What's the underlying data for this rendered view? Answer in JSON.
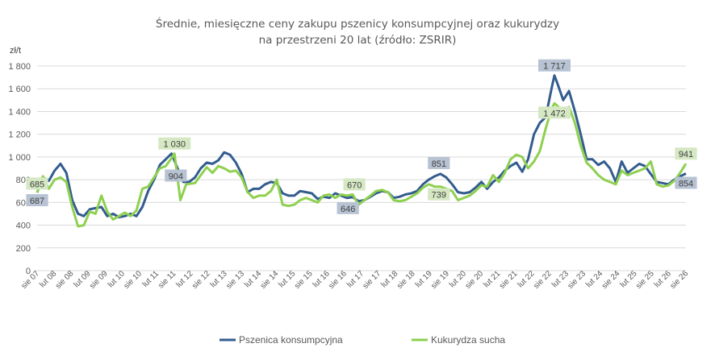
{
  "chart_data": {
    "type": "line",
    "title": "Średnie, miesięczne ceny zakupu pszenicy konsumpcyjnej oraz kukurydzy",
    "subtitle": "na przestrzeni 20 lat (źródło: ZSRIR)",
    "ylabel": "zł/t",
    "xlabel": "",
    "ylim": [
      0,
      1800
    ],
    "yticks": [
      0,
      200,
      400,
      600,
      800,
      1000,
      1200,
      1400,
      1600,
      1800
    ],
    "ytick_labels": [
      "0",
      "200",
      "400",
      "600",
      "800",
      "1 000",
      "1 200",
      "1 400",
      "1 600",
      "1 800"
    ],
    "x_start": "2007-08",
    "x_end": "2026-02",
    "xticks": [
      "sie 07",
      "lut 08",
      "sie 08",
      "lut 09",
      "sie 09",
      "lut 10",
      "sie 10",
      "lut 11",
      "sie 11",
      "lut 12",
      "sie 12",
      "lut 13",
      "sie 13",
      "lut 14",
      "sie 14",
      "lut 15",
      "sie 15",
      "lut 16",
      "sie 16",
      "lut 17",
      "sie 17",
      "lut 18",
      "sie 18",
      "lut 19",
      "sie 19",
      "lut 20",
      "sie 20",
      "lut 21",
      "sie 21",
      "lut 22",
      "sie 22",
      "lut 23",
      "sie 23",
      "lut 24",
      "sie 24",
      "lut 25",
      "sie 25",
      "lut 26",
      "sie 26"
    ],
    "grid": true,
    "legend_position": "bottom",
    "series": [
      {
        "name": "Pszenica konsumpcyjna",
        "color": "#335c8f",
        "points": [
          [
            "2007-08",
            687
          ],
          [
            "2007-10",
            820
          ],
          [
            "2007-12",
            790
          ],
          [
            "2008-02",
            880
          ],
          [
            "2008-04",
            940
          ],
          [
            "2008-06",
            860
          ],
          [
            "2008-08",
            620
          ],
          [
            "2008-10",
            500
          ],
          [
            "2008-12",
            480
          ],
          [
            "2009-02",
            540
          ],
          [
            "2009-04",
            550
          ],
          [
            "2009-06",
            560
          ],
          [
            "2009-08",
            480
          ],
          [
            "2009-10",
            500
          ],
          [
            "2009-12",
            470
          ],
          [
            "2010-02",
            480
          ],
          [
            "2010-04",
            500
          ],
          [
            "2010-06",
            480
          ],
          [
            "2010-08",
            560
          ],
          [
            "2010-10",
            700
          ],
          [
            "2010-12",
            800
          ],
          [
            "2011-02",
            930
          ],
          [
            "2011-04",
            980
          ],
          [
            "2011-06",
            1030
          ],
          [
            "2011-08",
            904
          ],
          [
            "2011-10",
            780
          ],
          [
            "2011-12",
            780
          ],
          [
            "2012-02",
            820
          ],
          [
            "2012-04",
            900
          ],
          [
            "2012-06",
            950
          ],
          [
            "2012-08",
            940
          ],
          [
            "2012-10",
            970
          ],
          [
            "2012-12",
            1040
          ],
          [
            "2013-02",
            1020
          ],
          [
            "2013-04",
            950
          ],
          [
            "2013-06",
            850
          ],
          [
            "2013-08",
            690
          ],
          [
            "2013-10",
            720
          ],
          [
            "2013-12",
            720
          ],
          [
            "2014-02",
            760
          ],
          [
            "2014-04",
            780
          ],
          [
            "2014-06",
            770
          ],
          [
            "2014-08",
            680
          ],
          [
            "2014-10",
            660
          ],
          [
            "2014-12",
            660
          ],
          [
            "2015-02",
            700
          ],
          [
            "2015-04",
            690
          ],
          [
            "2015-06",
            680
          ],
          [
            "2015-08",
            630
          ],
          [
            "2015-10",
            650
          ],
          [
            "2015-12",
            640
          ],
          [
            "2016-02",
            680
          ],
          [
            "2016-04",
            660
          ],
          [
            "2016-06",
            640
          ],
          [
            "2016-08",
            646
          ],
          [
            "2016-10",
            610
          ],
          [
            "2016-12",
            620
          ],
          [
            "2017-02",
            650
          ],
          [
            "2017-04",
            680
          ],
          [
            "2017-06",
            700
          ],
          [
            "2017-08",
            690
          ],
          [
            "2017-10",
            640
          ],
          [
            "2017-12",
            650
          ],
          [
            "2018-02",
            670
          ],
          [
            "2018-04",
            680
          ],
          [
            "2018-06",
            700
          ],
          [
            "2018-08",
            760
          ],
          [
            "2018-10",
            800
          ],
          [
            "2018-12",
            830
          ],
          [
            "2019-02",
            851
          ],
          [
            "2019-04",
            820
          ],
          [
            "2019-06",
            760
          ],
          [
            "2019-08",
            690
          ],
          [
            "2019-10",
            680
          ],
          [
            "2019-12",
            690
          ],
          [
            "2020-02",
            730
          ],
          [
            "2020-04",
            780
          ],
          [
            "2020-06",
            720
          ],
          [
            "2020-08",
            780
          ],
          [
            "2020-10",
            820
          ],
          [
            "2020-12",
            880
          ],
          [
            "2021-02",
            920
          ],
          [
            "2021-04",
            950
          ],
          [
            "2021-06",
            870
          ],
          [
            "2021-08",
            980
          ],
          [
            "2021-10",
            1200
          ],
          [
            "2021-12",
            1300
          ],
          [
            "2022-02",
            1350
          ],
          [
            "2022-04",
            1600
          ],
          [
            "2022-05",
            1717
          ],
          [
            "2022-06",
            1650
          ],
          [
            "2022-08",
            1500
          ],
          [
            "2022-10",
            1580
          ],
          [
            "2022-12",
            1400
          ],
          [
            "2023-02",
            1200
          ],
          [
            "2023-04",
            980
          ],
          [
            "2023-06",
            980
          ],
          [
            "2023-08",
            930
          ],
          [
            "2023-10",
            960
          ],
          [
            "2023-12",
            900
          ],
          [
            "2024-02",
            780
          ],
          [
            "2024-04",
            960
          ],
          [
            "2024-06",
            860
          ],
          [
            "2024-08",
            900
          ],
          [
            "2024-10",
            940
          ],
          [
            "2024-12",
            920
          ],
          [
            "2025-02",
            850
          ],
          [
            "2025-04",
            780
          ],
          [
            "2025-06",
            770
          ],
          [
            "2025-08",
            760
          ],
          [
            "2025-10",
            800
          ],
          [
            "2025-12",
            830
          ],
          [
            "2026-02",
            854
          ]
        ],
        "labels": [
          [
            "2007-08",
            687
          ],
          [
            "2011-08",
            904
          ],
          [
            "2016-08",
            646
          ],
          [
            "2019-02",
            851
          ],
          [
            "2022-05",
            1717
          ],
          [
            "2026-02",
            854
          ]
        ]
      },
      {
        "name": "Kukurydza sucha",
        "color": "#8ed04f",
        "points": [
          [
            "2007-08",
            685
          ],
          [
            "2007-10",
            830
          ],
          [
            "2007-12",
            720
          ],
          [
            "2008-02",
            800
          ],
          [
            "2008-04",
            820
          ],
          [
            "2008-06",
            780
          ],
          [
            "2008-08",
            560
          ],
          [
            "2008-10",
            390
          ],
          [
            "2008-12",
            400
          ],
          [
            "2009-02",
            520
          ],
          [
            "2009-04",
            500
          ],
          [
            "2009-06",
            660
          ],
          [
            "2009-08",
            520
          ],
          [
            "2009-10",
            450
          ],
          [
            "2009-12",
            480
          ],
          [
            "2010-02",
            510
          ],
          [
            "2010-04",
            480
          ],
          [
            "2010-06",
            530
          ],
          [
            "2010-08",
            720
          ],
          [
            "2010-10",
            740
          ],
          [
            "2010-12",
            820
          ],
          [
            "2011-02",
            900
          ],
          [
            "2011-04",
            920
          ],
          [
            "2011-06",
            990
          ],
          [
            "2011-07",
            1030
          ],
          [
            "2011-09",
            620
          ],
          [
            "2011-11",
            760
          ],
          [
            "2012-02",
            770
          ],
          [
            "2012-04",
            840
          ],
          [
            "2012-06",
            910
          ],
          [
            "2012-08",
            860
          ],
          [
            "2012-10",
            920
          ],
          [
            "2012-12",
            900
          ],
          [
            "2013-02",
            870
          ],
          [
            "2013-04",
            880
          ],
          [
            "2013-06",
            820
          ],
          [
            "2013-08",
            690
          ],
          [
            "2013-10",
            640
          ],
          [
            "2013-12",
            660
          ],
          [
            "2014-02",
            660
          ],
          [
            "2014-04",
            700
          ],
          [
            "2014-06",
            800
          ],
          [
            "2014-08",
            580
          ],
          [
            "2014-10",
            570
          ],
          [
            "2014-12",
            580
          ],
          [
            "2015-02",
            620
          ],
          [
            "2015-04",
            640
          ],
          [
            "2015-06",
            620
          ],
          [
            "2015-08",
            600
          ],
          [
            "2015-10",
            660
          ],
          [
            "2015-12",
            670
          ],
          [
            "2016-02",
            640
          ],
          [
            "2016-04",
            670
          ],
          [
            "2016-06",
            660
          ],
          [
            "2016-08",
            670
          ],
          [
            "2016-10",
            580
          ],
          [
            "2016-12",
            620
          ],
          [
            "2017-02",
            660
          ],
          [
            "2017-04",
            700
          ],
          [
            "2017-06",
            710
          ],
          [
            "2017-08",
            690
          ],
          [
            "2017-10",
            620
          ],
          [
            "2017-12",
            610
          ],
          [
            "2018-02",
            620
          ],
          [
            "2018-04",
            650
          ],
          [
            "2018-06",
            680
          ],
          [
            "2018-08",
            730
          ],
          [
            "2018-10",
            760
          ],
          [
            "2018-12",
            740
          ],
          [
            "2019-02",
            739
          ],
          [
            "2019-04",
            720
          ],
          [
            "2019-06",
            700
          ],
          [
            "2019-08",
            620
          ],
          [
            "2019-10",
            640
          ],
          [
            "2019-12",
            660
          ],
          [
            "2020-02",
            700
          ],
          [
            "2020-04",
            750
          ],
          [
            "2020-06",
            740
          ],
          [
            "2020-08",
            840
          ],
          [
            "2020-10",
            780
          ],
          [
            "2020-12",
            860
          ],
          [
            "2021-02",
            980
          ],
          [
            "2021-04",
            1020
          ],
          [
            "2021-06",
            1000
          ],
          [
            "2021-08",
            900
          ],
          [
            "2021-10",
            960
          ],
          [
            "2021-12",
            1050
          ],
          [
            "2022-02",
            1250
          ],
          [
            "2022-04",
            1420
          ],
          [
            "2022-05",
            1472
          ],
          [
            "2022-06",
            1450
          ],
          [
            "2022-08",
            1400
          ],
          [
            "2022-10",
            1440
          ],
          [
            "2022-12",
            1300
          ],
          [
            "2023-02",
            1100
          ],
          [
            "2023-04",
            950
          ],
          [
            "2023-06",
            900
          ],
          [
            "2023-08",
            840
          ],
          [
            "2023-10",
            800
          ],
          [
            "2023-12",
            780
          ],
          [
            "2024-02",
            760
          ],
          [
            "2024-04",
            880
          ],
          [
            "2024-06",
            840
          ],
          [
            "2024-08",
            860
          ],
          [
            "2024-10",
            880
          ],
          [
            "2024-12",
            900
          ],
          [
            "2025-02",
            960
          ],
          [
            "2025-04",
            760
          ],
          [
            "2025-06",
            740
          ],
          [
            "2025-08",
            750
          ],
          [
            "2025-10",
            790
          ],
          [
            "2025-12",
            860
          ],
          [
            "2026-02",
            941
          ]
        ],
        "labels": [
          [
            "2007-08",
            685
          ],
          [
            "2011-07",
            1030
          ],
          [
            "2016-08",
            670
          ],
          [
            "2019-02",
            739
          ],
          [
            "2022-05",
            1472
          ],
          [
            "2026-02",
            941
          ]
        ]
      }
    ]
  }
}
